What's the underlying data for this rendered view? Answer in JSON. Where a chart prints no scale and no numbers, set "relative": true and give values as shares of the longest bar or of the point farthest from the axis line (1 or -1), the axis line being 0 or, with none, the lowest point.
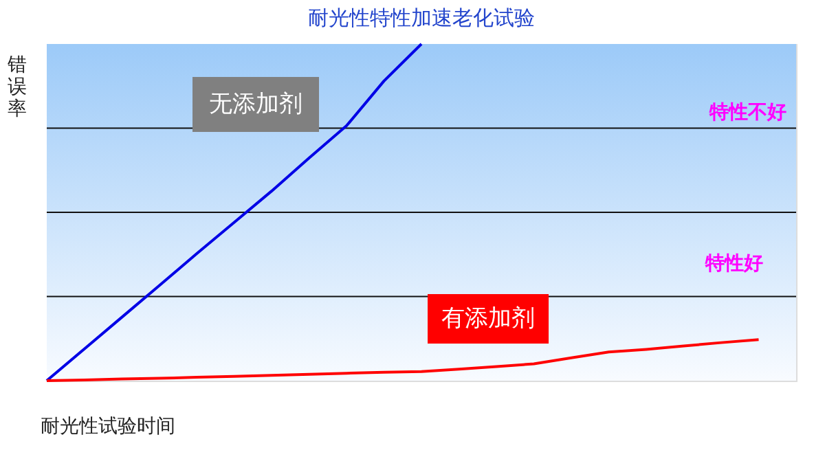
{
  "chart_data": {
    "type": "line",
    "title": "耐光性特性加速老化试验",
    "xlabel": "耐光性试验时间",
    "ylabel": "错误率",
    "relative": true,
    "grid": "y",
    "legend": false,
    "line_style": "solid",
    "marker": "none",
    "categories": [
      null,
      null,
      null,
      null,
      null,
      null,
      null,
      null,
      null,
      null,
      null,
      null,
      null,
      null,
      null,
      null,
      null,
      null,
      null,
      null,
      null
    ],
    "series": [
      {
        "name": "无添加剂",
        "color": "#0000e6",
        "values": [
          0,
          0.094,
          0.188,
          0.282,
          0.377,
          0.47,
          0.563,
          0.661,
          0.757,
          0.89,
          1.0,
          null,
          null,
          null,
          null,
          null,
          null,
          null,
          null,
          null,
          null
        ]
      },
      {
        "name": "有添加剂",
        "color": "#ff0000",
        "values": [
          0,
          0.002,
          0.005,
          0.007,
          0.01,
          0.013,
          0.016,
          0.019,
          0.022,
          0.025,
          0.027,
          0.034,
          0.042,
          0.05,
          0.068,
          0.085,
          0.093,
          0.103,
          0.113,
          0.122,
          null
        ]
      }
    ],
    "annotations": [
      "特性不好",
      "特性好"
    ]
  }
}
